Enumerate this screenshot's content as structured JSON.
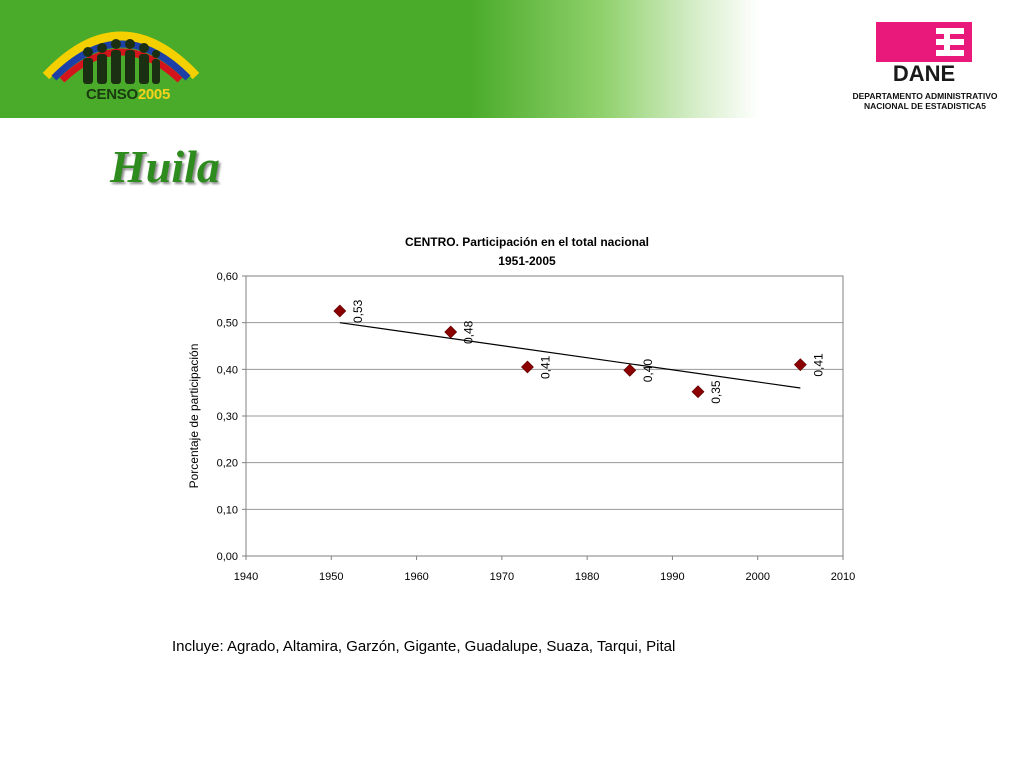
{
  "header": {
    "censo_logo_text": "CENSO",
    "censo_logo_year": "2005",
    "dane_logo_text": "DANE",
    "dane_subtitle_line1": "DEPARTAMENTO ADMINISTRATIVO",
    "dane_subtitle_line2": "NACIONAL DE ESTADISTICA5",
    "banner_color": "#4aab2a"
  },
  "page_title": "Huila",
  "footnote": "Incluye: Agrado, Altamira, Garzón, Gigante, Guadalupe, Suaza, Tarqui, Pital",
  "chart_data": {
    "type": "scatter",
    "title": "CENTRO. Participación en el total nacional",
    "subtitle": "1951-2005",
    "xlabel": "",
    "ylabel": "Porcentaje de participación",
    "xlim": [
      1940,
      2010
    ],
    "ylim": [
      0,
      0.6
    ],
    "x_ticks": [
      "1940",
      "1950",
      "1960",
      "1970",
      "1980",
      "1990",
      "2000",
      "2010"
    ],
    "y_ticks": [
      "0,00",
      "0,10",
      "0,20",
      "0,30",
      "0,40",
      "0,50",
      "0,60"
    ],
    "grid": true,
    "marker_color": "#8b0000",
    "trendline": {
      "x": [
        1951,
        2005
      ],
      "y": [
        0.5,
        0.36
      ]
    },
    "series": [
      {
        "points": [
          {
            "x": 1951,
            "y": 0.525,
            "label": "0,53"
          },
          {
            "x": 1964,
            "y": 0.48,
            "label": "0,48"
          },
          {
            "x": 1973,
            "y": 0.405,
            "label": "0,41"
          },
          {
            "x": 1985,
            "y": 0.398,
            "label": "0,40"
          },
          {
            "x": 1993,
            "y": 0.352,
            "label": "0,35"
          },
          {
            "x": 2005,
            "y": 0.41,
            "label": "0,41"
          }
        ]
      }
    ]
  }
}
